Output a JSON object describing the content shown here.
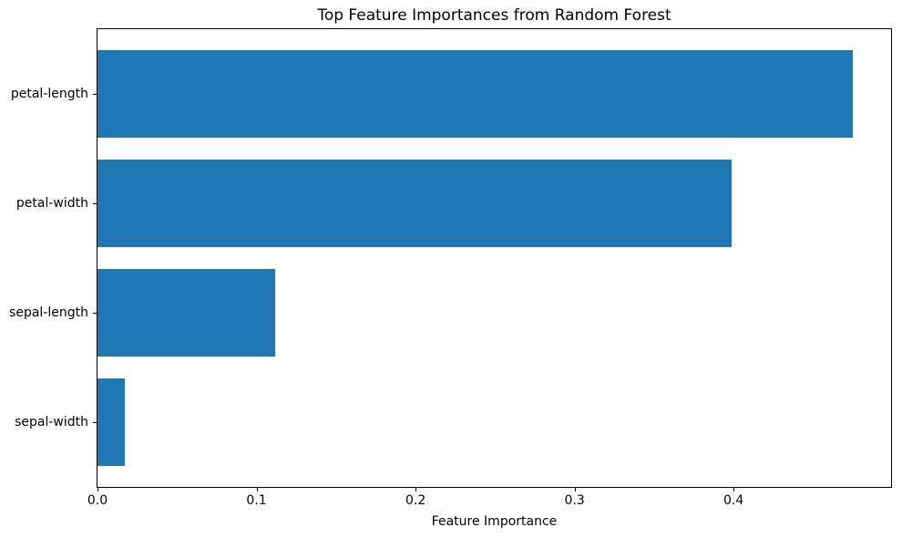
{
  "chart_data": {
    "type": "bar",
    "orientation": "horizontal",
    "title": "Top Feature Importances from Random Forest",
    "xlabel": "Feature Importance",
    "ylabel": "",
    "categories": [
      "petal-length",
      "petal-width",
      "sepal-length",
      "sepal-width"
    ],
    "values": [
      0.475,
      0.399,
      0.112,
      0.017
    ],
    "xlim": [
      0,
      0.499
    ],
    "xtick_labels": [
      "0.0",
      "0.1",
      "0.2",
      "0.3",
      "0.4"
    ],
    "bar_color": "#1f77b4",
    "grid": false,
    "legend_position": "none",
    "bar_width_fraction": 0.8
  }
}
